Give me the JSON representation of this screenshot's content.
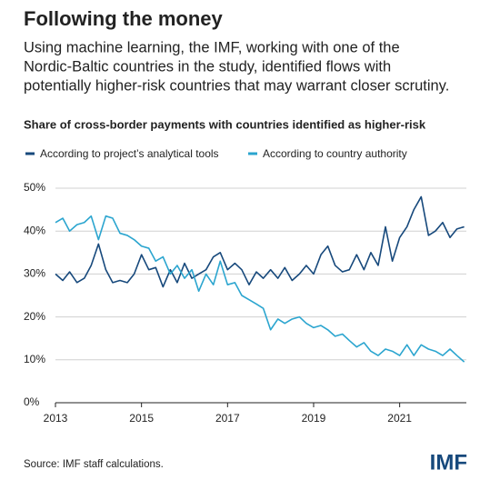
{
  "chart_data": {
    "type": "line",
    "title": "Following the money",
    "subtitle": [
      "Using machine learning, the IMF, working with one of the",
      "Nordic-Baltic countries in the study, identified flows with",
      "potentially higher-risk countries that may warrant closer scrutiny."
    ],
    "chart_title": "Share of cross-border payments with countries identified as higher-risk",
    "source": "Source: IMF staff calculations.",
    "logo": "IMF",
    "x": [
      2013,
      2013.17,
      2013.33,
      2013.5,
      2013.67,
      2013.83,
      2014,
      2014.17,
      2014.33,
      2014.5,
      2014.67,
      2014.83,
      2015,
      2015.17,
      2015.33,
      2015.5,
      2015.67,
      2015.83,
      2016,
      2016.17,
      2016.33,
      2016.5,
      2016.67,
      2016.83,
      2017,
      2017.17,
      2017.33,
      2017.5,
      2017.67,
      2017.83,
      2018,
      2018.17,
      2018.33,
      2018.5,
      2018.67,
      2018.83,
      2019,
      2019.17,
      2019.33,
      2019.5,
      2019.67,
      2019.83,
      2020,
      2020.17,
      2020.33,
      2020.5,
      2020.67,
      2020.83,
      2021,
      2021.17,
      2021.33,
      2021.5,
      2021.67,
      2021.83,
      2022,
      2022.17,
      2022.33,
      2022.5
    ],
    "series": [
      {
        "name": "According to project’s analytical tools",
        "color": "#17497c",
        "values": [
          30,
          28.5,
          30.5,
          28,
          29,
          32,
          37,
          31,
          28,
          28.5,
          28,
          30,
          34.5,
          31,
          31.5,
          27,
          31,
          28,
          32.5,
          29,
          30,
          31,
          34,
          35,
          31,
          32.5,
          31,
          27.5,
          30.5,
          29,
          31,
          29,
          31.5,
          28.5,
          30,
          32,
          30,
          34.5,
          36.5,
          32,
          30.5,
          31,
          34.5,
          31,
          35,
          32,
          41,
          33,
          38.5,
          41,
          45,
          48,
          39,
          40,
          42,
          38.5,
          40.5,
          41
        ]
      },
      {
        "name": "According to country authority",
        "color": "#2ba5cf",
        "values": [
          42,
          43,
          40,
          41.5,
          42,
          43.5,
          38,
          43.5,
          43,
          39.5,
          39,
          38,
          36.5,
          36,
          33,
          34,
          30,
          32,
          29,
          31,
          26,
          30,
          27.5,
          33,
          27.5,
          28,
          25,
          24,
          23,
          22,
          17,
          19.5,
          18.5,
          19.5,
          20,
          18.5,
          17.5,
          18,
          17,
          15.5,
          16,
          14.5,
          13,
          14,
          12,
          11,
          12.5,
          12,
          11,
          13.5,
          11,
          13.5,
          12.5,
          12,
          11,
          12.5,
          11,
          9.5
        ]
      }
    ],
    "xlim": [
      2013,
      2022.55
    ],
    "xticks": [
      2013,
      2015,
      2017,
      2019,
      2021
    ],
    "ylim": [
      0,
      50
    ],
    "yticks": [
      {
        "value": 0,
        "label": "0%"
      },
      {
        "value": 10,
        "label": "10%"
      },
      {
        "value": 20,
        "label": "20%"
      },
      {
        "value": 30,
        "label": "30%"
      },
      {
        "value": 40,
        "label": "40%"
      },
      {
        "value": 50,
        "label": "50%"
      }
    ],
    "grid": true
  }
}
